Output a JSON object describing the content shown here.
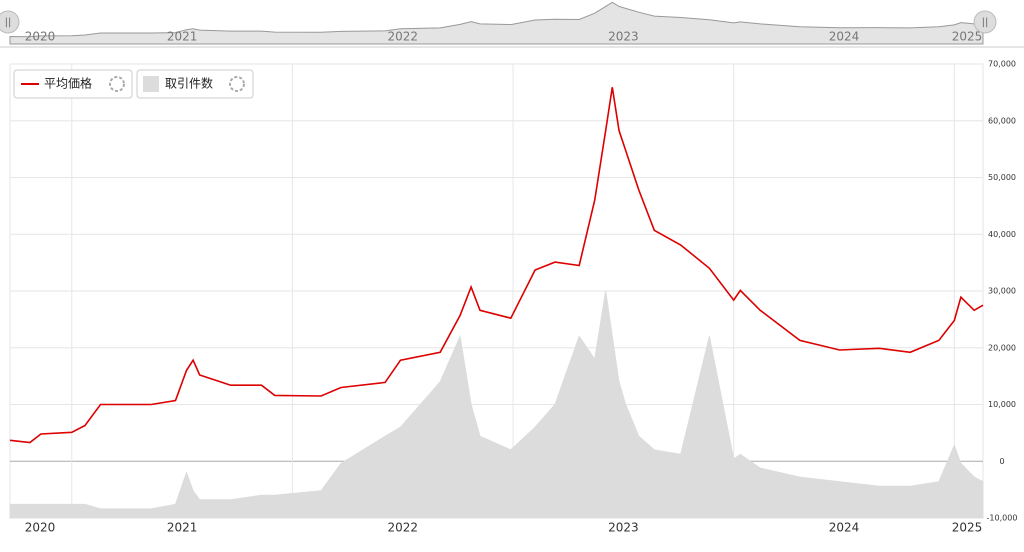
{
  "chart_data": {
    "type": "line",
    "x": [
      2020.72,
      2020.81,
      2020.86,
      2021.0,
      2021.06,
      2021.13,
      2021.36,
      2021.47,
      2021.52,
      2021.55,
      2021.58,
      2021.72,
      2021.86,
      2021.92,
      2022.13,
      2022.22,
      2022.42,
      2022.49,
      2022.67,
      2022.76,
      2022.81,
      2022.85,
      2022.99,
      2023.1,
      2023.19,
      2023.3,
      2023.37,
      2023.42,
      2023.45,
      2023.48,
      2023.51,
      2023.57,
      2023.64,
      2023.76,
      2023.89,
      2024.0,
      2024.03,
      2024.12,
      2024.3,
      2024.48,
      2024.66,
      2024.8,
      2024.93,
      2025.0,
      2025.03,
      2025.09,
      2025.13
    ],
    "series": [
      {
        "name": "平均価格",
        "color": "#dd0000",
        "values": [
          3700,
          3300,
          4800,
          5100,
          6300,
          10000,
          10000,
          10700,
          16000,
          17800,
          15200,
          13400,
          13400,
          11600,
          11500,
          13000,
          13900,
          17800,
          19200,
          25700,
          30700,
          26600,
          25200,
          33700,
          35100,
          34500,
          46000,
          58300,
          65900,
          58300,
          54800,
          47800,
          40700,
          38100,
          34000,
          28400,
          30100,
          26600,
          21300,
          19600,
          19900,
          19200,
          21300,
          24800,
          28900,
          26600,
          27500
        ]
      },
      {
        "name": "取引件数",
        "color": "#dcdcdc",
        "type": "area",
        "axis": "y2",
        "values": [
          30,
          30,
          30,
          30,
          30,
          20,
          20,
          30,
          100,
          60,
          40,
          40,
          50,
          50,
          60,
          120,
          180,
          200,
          300,
          400,
          250,
          180,
          150,
          200,
          250,
          400,
          350,
          500,
          400,
          300,
          250,
          180,
          150,
          140,
          400,
          130,
          140,
          110,
          90,
          80,
          70,
          70,
          80,
          160,
          120,
          90,
          80
        ]
      }
    ],
    "xlim": [
      2020.72,
      2025.13
    ],
    "xticks": [
      2020,
      2021,
      2022,
      2023,
      2024,
      2025
    ],
    "ylim": [
      -10000,
      70000
    ],
    "yticks": [
      {
        "value": -10000,
        "label": "-10,000"
      },
      0,
      {
        "value": 10000,
        "label": "10,000"
      },
      {
        "value": 20000,
        "label": "20,000"
      },
      {
        "value": 30000,
        "label": "30,000"
      },
      {
        "value": 40000,
        "label": "40,000"
      },
      {
        "value": 50000,
        "label": "50,000"
      },
      {
        "value": 60000,
        "label": "60,000"
      },
      {
        "value": 70000,
        "label": "70,000"
      }
    ],
    "y2lim": [
      0,
      1000
    ],
    "grid": true
  }
}
